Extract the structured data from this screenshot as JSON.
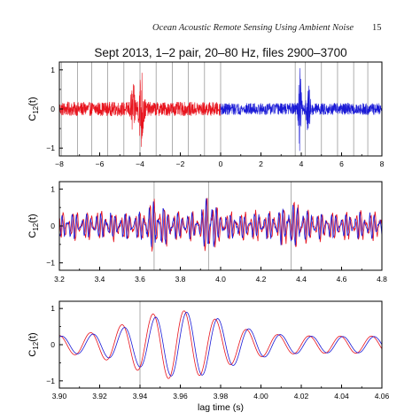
{
  "page": {
    "header": "Ocean Acoustic Remote Sensing Using Ambient Noise",
    "page_number": "15"
  },
  "colors": {
    "negative_lag": "#e8141e",
    "positive_lag": "#1a1ad6",
    "marker_lines": "#9a9a9a"
  },
  "chart_data": [
    {
      "type": "line",
      "title": "Sept 2013, 1–2 pair, 20–80 Hz, files 2900–3700",
      "ylabel": "C12(t)",
      "xlabel": "",
      "xlim": [
        -8,
        8
      ],
      "ylim": [
        -1.2,
        1.2
      ],
      "xticks": [
        "−8",
        "−6",
        "−4",
        "−2",
        "0",
        "2",
        "4",
        "6",
        "8"
      ],
      "yticks": [
        "1",
        "0",
        "−1"
      ],
      "vertical_markers": [
        -7.9,
        -7.1,
        -6.4,
        -5.6,
        -4.8,
        -4.0,
        -3.2,
        -2.4,
        -1.6,
        -0.8,
        0.0,
        3.7,
        4.2,
        5.0,
        5.8,
        6.6,
        7.3
      ],
      "series": [
        {
          "color_key": "negative_lag",
          "x_range": [
            -8,
            0
          ],
          "noise_level": 0.18,
          "peaks": [
            [
              -3.93,
              0.95,
              0.12
            ],
            [
              -4.35,
              0.5,
              0.12
            ]
          ]
        },
        {
          "color_key": "positive_lag",
          "x_range": [
            0,
            8
          ],
          "noise_level": 0.15,
          "peaks": [
            [
              3.93,
              0.95,
              0.08
            ],
            [
              4.35,
              0.5,
              0.1
            ]
          ]
        }
      ]
    },
    {
      "type": "line",
      "ylabel": "C12(t)",
      "xlabel": "",
      "xlim": [
        3.2,
        4.8
      ],
      "ylim": [
        -1.2,
        1.2
      ],
      "xticks": [
        "3.2",
        "3.4",
        "3.6",
        "3.8",
        "4.0",
        "4.2",
        "4.4",
        "4.6",
        "4.8"
      ],
      "yticks": [
        "1",
        "0",
        "−1"
      ],
      "vertical_markers": [
        3.67,
        3.94,
        4.35
      ],
      "series": [
        {
          "color_key": "negative_lag",
          "x_range": [
            3.2,
            4.8
          ],
          "noise_level": 0.45,
          "peaks": [
            [
              3.95,
              0.9,
              0.025
            ],
            [
              3.68,
              0.4,
              0.05
            ],
            [
              4.36,
              0.3,
              0.06
            ]
          ]
        },
        {
          "color_key": "positive_lag",
          "x_range": [
            3.2,
            4.8
          ],
          "noise_level": 0.4,
          "peaks": [
            [
              3.945,
              0.9,
              0.025
            ],
            [
              3.68,
              0.35,
              0.05
            ],
            [
              4.35,
              0.3,
              0.06
            ]
          ]
        }
      ]
    },
    {
      "type": "line",
      "ylabel": "C12(t)",
      "xlabel": "lag time (s)",
      "xlim": [
        3.9,
        4.06
      ],
      "ylim": [
        -1.2,
        1.2
      ],
      "xticks": [
        "3.90",
        "3.92",
        "3.94",
        "3.96",
        "3.98",
        "4.00",
        "4.02",
        "4.04",
        "4.06"
      ],
      "yticks": [
        "1",
        "0",
        "−1"
      ],
      "vertical_markers": [
        3.94
      ],
      "series": [
        {
          "color_key": "negative_lag",
          "x_range": [
            3.9,
            4.06
          ],
          "wave": {
            "center": 3.958,
            "amplitude": 0.95,
            "period": 0.0155,
            "width": 0.03,
            "phase": 0.0
          }
        },
        {
          "color_key": "positive_lag",
          "x_range": [
            3.9,
            4.06
          ],
          "wave": {
            "center": 3.962,
            "amplitude": 0.9,
            "period": 0.0155,
            "width": 0.03,
            "phase": 0.35
          }
        }
      ]
    }
  ]
}
